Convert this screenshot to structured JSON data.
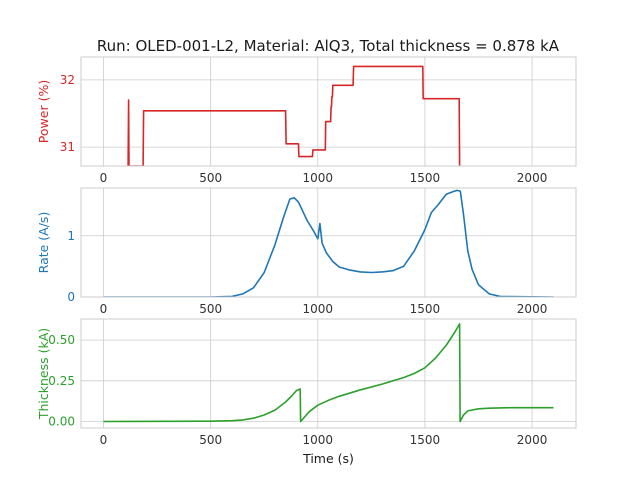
{
  "figure_title": "Run: OLED-001-L2, Material: AlQ3, Total thickness = 0.878 kA",
  "chart_data": [
    {
      "type": "line",
      "panel": "power",
      "title": "Run: OLED-001-L2, Material: AlQ3, Total thickness = 0.878 kA",
      "xlabel": "",
      "ylabel": "Power (%)",
      "color": "#d62728",
      "xlim": [
        -105,
        2205
      ],
      "ylim": [
        30.72,
        32.34
      ],
      "xticks": [
        0,
        500,
        1000,
        1500,
        2000
      ],
      "yticks": [
        31,
        32
      ],
      "grid": true,
      "series": [
        {
          "x": [
            115,
            117,
            119,
            121,
            185,
            187,
            189,
            850,
            852,
            910,
            912,
            975,
            977,
            1035,
            1037,
            1060,
            1062,
            1064,
            1066,
            1068,
            1070,
            1072,
            1074,
            1076,
            1078,
            1165,
            1167,
            1490,
            1492,
            1660,
            1662
          ],
          "y": [
            30.72,
            31.7,
            30.72,
            30.72,
            30.72,
            31.54,
            31.54,
            31.54,
            31.05,
            31.05,
            30.86,
            30.86,
            30.96,
            30.96,
            31.38,
            31.38,
            31.6,
            31.6,
            31.75,
            31.75,
            31.92,
            31.92,
            31.92,
            31.92,
            31.92,
            31.92,
            32.2,
            32.2,
            31.72,
            31.72,
            30.72
          ]
        }
      ]
    },
    {
      "type": "line",
      "panel": "rate",
      "xlabel": "",
      "ylabel": "Rate (A/s)",
      "color": "#1f77b4",
      "xlim": [
        -105,
        2205
      ],
      "ylim": [
        0,
        1.78
      ],
      "xticks": [
        0,
        500,
        1000,
        1500,
        2000
      ],
      "yticks": [
        0,
        1
      ],
      "grid": true,
      "series": [
        {
          "x": [
            0,
            500,
            600,
            650,
            700,
            750,
            800,
            840,
            870,
            890,
            910,
            930,
            950,
            980,
            1000,
            1010,
            1020,
            1040,
            1070,
            1100,
            1150,
            1200,
            1250,
            1300,
            1350,
            1400,
            1450,
            1500,
            1530,
            1560,
            1600,
            1630,
            1650,
            1665,
            1680,
            1700,
            1720,
            1750,
            1800,
            1850,
            2100
          ],
          "y": [
            0,
            0,
            0.01,
            0.05,
            0.15,
            0.4,
            0.85,
            1.3,
            1.6,
            1.62,
            1.55,
            1.4,
            1.25,
            1.08,
            0.95,
            1.2,
            0.88,
            0.72,
            0.58,
            0.49,
            0.44,
            0.41,
            0.4,
            0.41,
            0.43,
            0.5,
            0.75,
            1.1,
            1.38,
            1.5,
            1.68,
            1.72,
            1.74,
            1.73,
            1.35,
            0.75,
            0.45,
            0.2,
            0.05,
            0.01,
            0
          ]
        }
      ]
    },
    {
      "type": "line",
      "panel": "thickness",
      "xlabel": "Time (s)",
      "ylabel": "Thickness (kA)",
      "color": "#2ca02c",
      "xlim": [
        -105,
        2205
      ],
      "ylim": [
        -0.04,
        0.63
      ],
      "xticks": [
        0,
        500,
        1000,
        1500,
        2000
      ],
      "yticks": [
        0.0,
        0.25,
        0.5
      ],
      "tick_labels": [
        "0.00",
        "0.25",
        "0.50"
      ],
      "grid": true,
      "series": [
        {
          "x": [
            0,
            500,
            600,
            650,
            700,
            750,
            800,
            850,
            880,
            900,
            918,
            920,
            940,
            960,
            1000,
            1050,
            1100,
            1200,
            1300,
            1400,
            1450,
            1500,
            1550,
            1600,
            1640,
            1662,
            1664,
            1680,
            1700,
            1750,
            1800,
            1900,
            2100
          ],
          "y": [
            0,
            0.002,
            0.005,
            0.01,
            0.02,
            0.04,
            0.07,
            0.12,
            0.16,
            0.19,
            0.2,
            0.0,
            0.03,
            0.06,
            0.1,
            0.13,
            0.155,
            0.195,
            0.23,
            0.27,
            0.295,
            0.33,
            0.39,
            0.47,
            0.55,
            0.6,
            0.0,
            0.04,
            0.065,
            0.078,
            0.082,
            0.085,
            0.085
          ]
        }
      ]
    }
  ]
}
